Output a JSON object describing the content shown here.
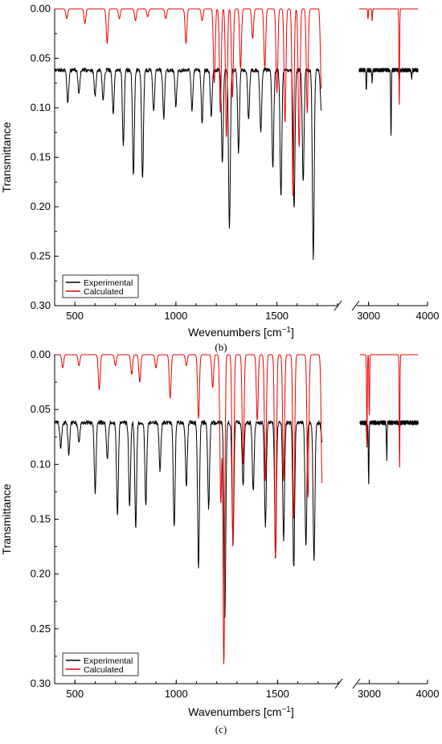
{
  "chart_data": [
    {
      "type": "line",
      "caption": "(b)",
      "ylabel": "Transmittance",
      "xlabel_text": "Wevenumbers [cm",
      "xlabel_sup": "−1",
      "xlabel_close": "]",
      "ylim": [
        0.0,
        0.3
      ],
      "y_inverted": true,
      "y_ticks": [
        "0.00",
        "0.05",
        "0.10",
        "0.15",
        "0.20",
        "0.25",
        "0.30"
      ],
      "x_segments": [
        {
          "range": [
            400,
            1800
          ],
          "ticks": [
            "500",
            "1000",
            "1500"
          ]
        },
        {
          "range": [
            2800,
            4000
          ],
          "ticks": [
            "3000",
            "4000"
          ]
        }
      ],
      "legend": {
        "position": "bottom-left",
        "entries": [
          "Experimental",
          "Calculated"
        ]
      },
      "series": [
        {
          "name": "Experimental",
          "color": "#000000",
          "baseline": 0.062,
          "peaks": [
            [
              465,
              0.095
            ],
            [
              520,
              0.085
            ],
            [
              600,
              0.088
            ],
            [
              640,
              0.092
            ],
            [
              690,
              0.105
            ],
            [
              740,
              0.138
            ],
            [
              790,
              0.168
            ],
            [
              835,
              0.173
            ],
            [
              890,
              0.105
            ],
            [
              940,
              0.11
            ],
            [
              1000,
              0.098
            ],
            [
              1080,
              0.102
            ],
            [
              1130,
              0.115
            ],
            [
              1175,
              0.108
            ],
            [
              1230,
              0.155
            ],
            [
              1265,
              0.223
            ],
            [
              1310,
              0.145
            ],
            [
              1360,
              0.112
            ],
            [
              1420,
              0.125
            ],
            [
              1480,
              0.16
            ],
            [
              1520,
              0.19
            ],
            [
              1585,
              0.202
            ],
            [
              1630,
              0.175
            ],
            [
              1680,
              0.253
            ],
            [
              1720,
              0.105
            ],
            [
              2960,
              0.082
            ],
            [
              3060,
              0.075
            ],
            [
              3380,
              0.128
            ],
            [
              3520,
              0.072
            ],
            [
              3730,
              0.07
            ]
          ]
        },
        {
          "name": "Calculated",
          "color": "#ee0000",
          "baseline": 0.0,
          "peaks": [
            [
              460,
              0.01
            ],
            [
              550,
              0.015
            ],
            [
              660,
              0.035
            ],
            [
              720,
              0.01
            ],
            [
              800,
              0.012
            ],
            [
              860,
              0.008
            ],
            [
              950,
              0.01
            ],
            [
              1050,
              0.035
            ],
            [
              1130,
              0.012
            ],
            [
              1190,
              0.075
            ],
            [
              1220,
              0.105
            ],
            [
              1250,
              0.13
            ],
            [
              1280,
              0.09
            ],
            [
              1320,
              0.06
            ],
            [
              1380,
              0.03
            ],
            [
              1440,
              0.06
            ],
            [
              1500,
              0.085
            ],
            [
              1540,
              0.115
            ],
            [
              1580,
              0.19
            ],
            [
              1610,
              0.14
            ],
            [
              1650,
              0.105
            ],
            [
              1720,
              0.083
            ],
            [
              2990,
              0.01
            ],
            [
              3060,
              0.012
            ],
            [
              3520,
              0.097
            ]
          ]
        }
      ]
    },
    {
      "type": "line",
      "caption": "(c)",
      "ylabel": "Transmittance",
      "xlabel_text": "Wavenumbers [cm",
      "xlabel_sup": "−1",
      "xlabel_close": "]",
      "ylim": [
        0.0,
        0.3
      ],
      "y_inverted": true,
      "y_ticks": [
        "0.00",
        "0.05",
        "0.10",
        "0.15",
        "0.20",
        "0.25",
        "0.30"
      ],
      "x_segments": [
        {
          "range": [
            400,
            1800
          ],
          "ticks": [
            "500",
            "1000",
            "1500"
          ]
        },
        {
          "range": [
            2800,
            4000
          ],
          "ticks": [
            "3000",
            "4000"
          ]
        }
      ],
      "legend": {
        "position": "bottom-left",
        "entries": [
          "Experimental",
          "Calculated"
        ]
      },
      "series": [
        {
          "name": "Experimental",
          "color": "#000000",
          "baseline": 0.062,
          "peaks": [
            [
              430,
              0.085
            ],
            [
              470,
              0.09
            ],
            [
              520,
              0.08
            ],
            [
              600,
              0.125
            ],
            [
              660,
              0.095
            ],
            [
              710,
              0.145
            ],
            [
              770,
              0.14
            ],
            [
              800,
              0.158
            ],
            [
              850,
              0.138
            ],
            [
              920,
              0.105
            ],
            [
              990,
              0.158
            ],
            [
              1050,
              0.12
            ],
            [
              1110,
              0.193
            ],
            [
              1160,
              0.14
            ],
            [
              1240,
              0.24
            ],
            [
              1280,
              0.175
            ],
            [
              1330,
              0.12
            ],
            [
              1380,
              0.125
            ],
            [
              1440,
              0.157
            ],
            [
              1490,
              0.185
            ],
            [
              1530,
              0.168
            ],
            [
              1580,
              0.194
            ],
            [
              1640,
              0.175
            ],
            [
              1680,
              0.188
            ],
            [
              1720,
              0.08
            ],
            [
              2960,
              0.083
            ],
            [
              2990,
              0.118
            ],
            [
              3300,
              0.095
            ],
            [
              3520,
              0.07
            ]
          ]
        },
        {
          "name": "Calculated",
          "color": "#ee0000",
          "baseline": 0.0,
          "peaks": [
            [
              440,
              0.012
            ],
            [
              520,
              0.01
            ],
            [
              620,
              0.032
            ],
            [
              700,
              0.01
            ],
            [
              780,
              0.018
            ],
            [
              820,
              0.025
            ],
            [
              900,
              0.012
            ],
            [
              970,
              0.04
            ],
            [
              1050,
              0.01
            ],
            [
              1110,
              0.058
            ],
            [
              1180,
              0.03
            ],
            [
              1220,
              0.135
            ],
            [
              1235,
              0.283
            ],
            [
              1280,
              0.175
            ],
            [
              1330,
              0.1
            ],
            [
              1400,
              0.06
            ],
            [
              1440,
              0.115
            ],
            [
              1490,
              0.185
            ],
            [
              1530,
              0.115
            ],
            [
              1580,
              0.15
            ],
            [
              1650,
              0.13
            ],
            [
              1720,
              0.12
            ],
            [
              2960,
              0.083
            ],
            [
              3000,
              0.055
            ],
            [
              3520,
              0.103
            ]
          ]
        }
      ]
    }
  ]
}
